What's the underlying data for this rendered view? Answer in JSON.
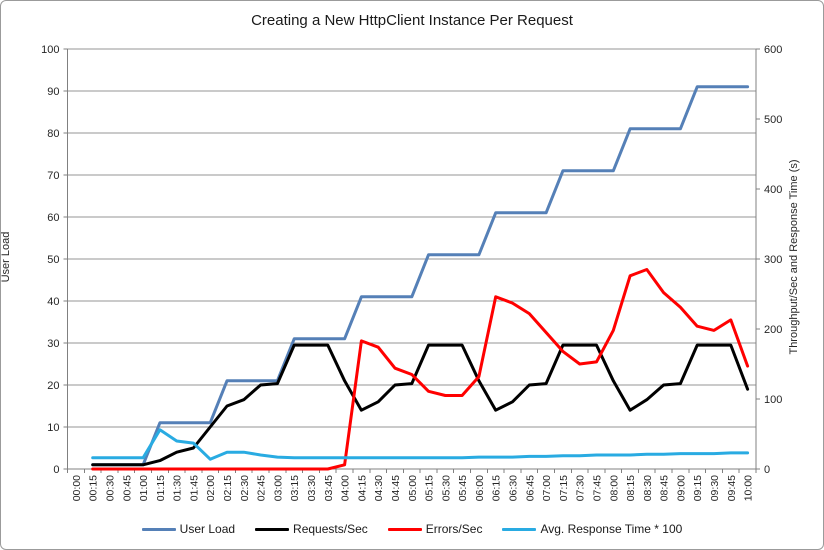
{
  "chart_data": {
    "type": "line",
    "title": "Creating a New HttpClient Instance Per Request",
    "ylabel_left": "User Load",
    "ylabel_right": "Throughput/Sec and Response Time (s)",
    "axis_left": {
      "min": 0,
      "max": 100,
      "step": 10
    },
    "axis_right": {
      "min": 0,
      "max": 600,
      "step": 100
    },
    "grid": true,
    "legend_position": "bottom",
    "grid_color": "#969696",
    "axis_color": "#808080",
    "text_color": "#262626",
    "categories": [
      "00:00",
      "00:15",
      "00:30",
      "00:45",
      "01:00",
      "01:15",
      "01:30",
      "01:45",
      "02:00",
      "02:15",
      "02:30",
      "02:45",
      "03:00",
      "03:15",
      "03:30",
      "03:45",
      "04:00",
      "04:15",
      "04:30",
      "04:45",
      "05:00",
      "05:15",
      "05:30",
      "05:45",
      "06:00",
      "06:15",
      "06:30",
      "06:45",
      "07:00",
      "07:15",
      "07:30",
      "07:45",
      "08:00",
      "08:15",
      "08:30",
      "08:45",
      "09:00",
      "09:15",
      "09:30",
      "09:45",
      "10:00"
    ],
    "series": [
      {
        "name": "User Load",
        "axis": "left",
        "color": "#5580B7",
        "values": [
          null,
          1,
          1,
          1,
          1,
          11,
          11,
          11,
          11,
          21,
          21,
          21,
          21,
          31,
          31,
          31,
          31,
          41,
          41,
          41,
          41,
          51,
          51,
          51,
          51,
          61,
          61,
          61,
          61,
          71,
          71,
          71,
          71,
          81,
          81,
          81,
          81,
          91,
          91,
          91,
          91
        ]
      },
      {
        "name": "Requests/Sec",
        "axis": "right",
        "color": "#000000",
        "values": [
          null,
          6,
          6,
          6,
          6,
          12,
          24,
          30,
          60,
          90,
          99,
          120,
          122,
          177,
          177,
          177,
          126,
          84,
          96,
          120,
          122,
          177,
          177,
          177,
          126,
          84,
          96,
          120,
          122,
          177,
          177,
          177,
          126,
          84,
          99,
          120,
          122,
          177,
          177,
          177,
          114
        ]
      },
      {
        "name": "Errors/Sec",
        "axis": "right",
        "color": "#FF0000",
        "values": [
          null,
          0,
          0,
          0,
          0,
          0,
          0,
          0,
          0,
          0,
          0,
          0,
          0,
          0,
          0,
          0,
          6,
          183,
          174,
          144,
          135,
          111,
          105,
          105,
          132,
          246,
          237,
          222,
          195,
          168,
          150,
          153,
          198,
          276,
          285,
          252,
          231,
          204,
          198,
          213,
          147
        ]
      },
      {
        "name": "Avg. Response Time * 100",
        "axis": "right",
        "color": "#29ABE2",
        "values": [
          null,
          16,
          16,
          16,
          16,
          56,
          40,
          37,
          14,
          24,
          24,
          20,
          17,
          16,
          16,
          16,
          16,
          16,
          16,
          16,
          16,
          16,
          16,
          16,
          17,
          17,
          17,
          18,
          18,
          19,
          19,
          20,
          20,
          20,
          21,
          21,
          22,
          22,
          22,
          23,
          23
        ]
      }
    ]
  }
}
